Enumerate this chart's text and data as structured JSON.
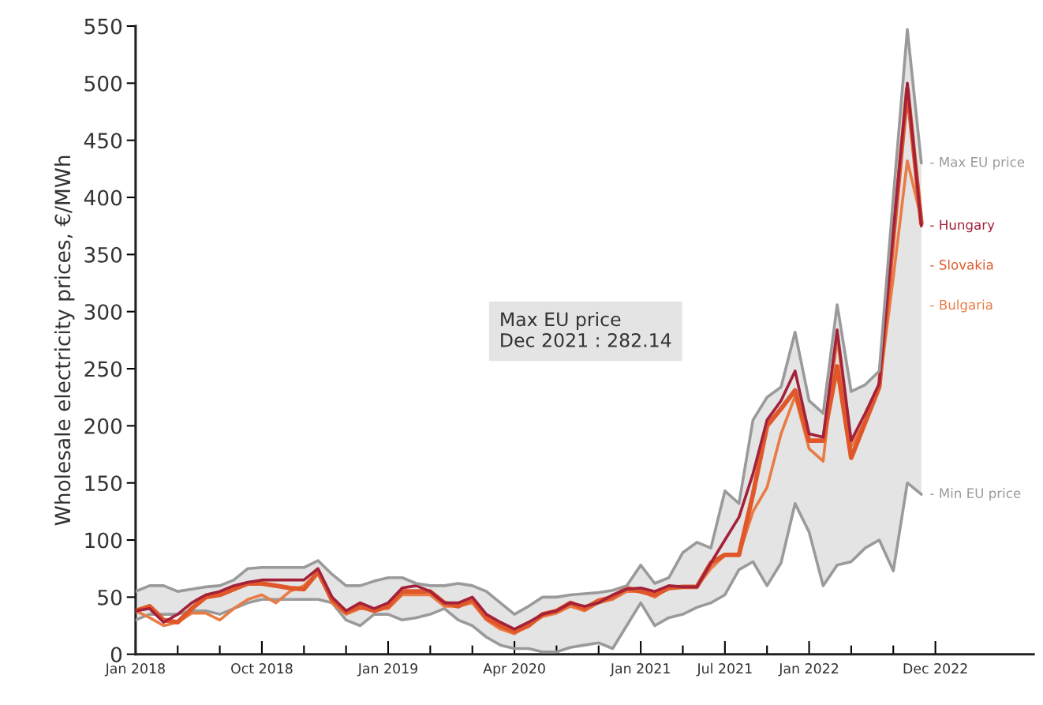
{
  "chart_data": {
    "type": "line",
    "ylabel": "Wholesale electricity prices, €/MWh",
    "categories": [
      "Jan 2018",
      null,
      null,
      null,
      null,
      null,
      null,
      null,
      null,
      "Oct 2018",
      null,
      null,
      null,
      null,
      null,
      null,
      null,
      null,
      "Jan 2019",
      null,
      null,
      null,
      null,
      null,
      null,
      null,
      null,
      "Apr 2020",
      null,
      null,
      null,
      null,
      null,
      null,
      null,
      null,
      "Jan 2021",
      null,
      null,
      null,
      null,
      null,
      "Jul 2021",
      null,
      null,
      null,
      null,
      null,
      "Jan 2022",
      null,
      null,
      null,
      null,
      null,
      null,
      null,
      null,
      "Dec 2022"
    ],
    "ylim": [
      0,
      550
    ],
    "yticks": [
      0,
      50,
      100,
      150,
      200,
      250,
      300,
      350,
      400,
      450,
      500,
      550
    ],
    "grid": false,
    "legend": false,
    "marker": "none",
    "line_style": "solid",
    "series": [
      {
        "name": "- Max EU price",
        "color": "#9a9a9a",
        "values": [
          55,
          60,
          60,
          55,
          57,
          59,
          60,
          65,
          75,
          76,
          76,
          76,
          76,
          82,
          70,
          60,
          60,
          64,
          67,
          67,
          62,
          60,
          60,
          62,
          60,
          55,
          45,
          35,
          42,
          50,
          50,
          52,
          53,
          54,
          56,
          60,
          78,
          62,
          67,
          89,
          98,
          93,
          143,
          132,
          205,
          225,
          234,
          282,
          222,
          211,
          306,
          230,
          236,
          248,
          400,
          547,
          430,
          null
        ],
        "lower": [
          30,
          35,
          35,
          35,
          38,
          38,
          35,
          40,
          45,
          48,
          48,
          48,
          48,
          48,
          45,
          30,
          25,
          35,
          35,
          30,
          32,
          35,
          40,
          30,
          25,
          15,
          8,
          5,
          5,
          2,
          2,
          6,
          8,
          10,
          5,
          25,
          45,
          25,
          32,
          35,
          41,
          45,
          52,
          74,
          81,
          60,
          80,
          132,
          107,
          60,
          78,
          81,
          93,
          100,
          73,
          150,
          140,
          null
        ],
        "upper": [
          55,
          60,
          60,
          55,
          57,
          59,
          60,
          65,
          75,
          76,
          76,
          76,
          76,
          82,
          70,
          60,
          60,
          64,
          67,
          67,
          62,
          60,
          60,
          62,
          60,
          55,
          45,
          35,
          42,
          50,
          50,
          52,
          53,
          54,
          56,
          60,
          78,
          62,
          67,
          89,
          98,
          93,
          143,
          132,
          205,
          225,
          234,
          282,
          222,
          211,
          306,
          230,
          236,
          248,
          400,
          547,
          430,
          null
        ]
      },
      {
        "name": "- Hungary",
        "color": "#a3213a",
        "values": [
          38,
          40,
          28,
          35,
          45,
          52,
          55,
          60,
          63,
          65,
          65,
          65,
          65,
          75,
          50,
          38,
          45,
          40,
          45,
          58,
          60,
          55,
          45,
          45,
          50,
          35,
          28,
          22,
          28,
          35,
          38,
          45,
          42,
          45,
          52,
          57,
          58,
          55,
          60,
          59,
          59,
          80,
          100,
          120,
          158,
          205,
          222,
          248,
          193,
          190,
          284,
          187,
          211,
          237,
          370,
          500,
          375,
          null
        ]
      },
      {
        "name": "- Slovakia",
        "color": "#e0582a",
        "values": [
          38,
          42,
          30,
          28,
          40,
          50,
          52,
          57,
          62,
          62,
          60,
          58,
          57,
          72,
          48,
          37,
          42,
          38,
          42,
          55,
          55,
          55,
          45,
          42,
          48,
          32,
          25,
          20,
          25,
          35,
          38,
          45,
          40,
          47,
          50,
          58,
          55,
          52,
          58,
          59,
          59,
          80,
          87,
          87,
          140,
          200,
          215,
          231,
          187,
          187,
          252,
          172,
          203,
          234,
          365,
          495,
          377,
          null
        ]
      },
      {
        "name": "- Bulgaria",
        "color": "#e97b45",
        "values": [
          38,
          32,
          25,
          28,
          36,
          36,
          30,
          40,
          48,
          52,
          45,
          55,
          60,
          72,
          45,
          35,
          40,
          40,
          40,
          52,
          52,
          52,
          42,
          42,
          45,
          30,
          22,
          18,
          25,
          33,
          36,
          42,
          38,
          45,
          48,
          55,
          55,
          50,
          58,
          59,
          59,
          75,
          87,
          87,
          125,
          146,
          193,
          226,
          180,
          169,
          277,
          182,
          205,
          234,
          330,
          432,
          381,
          null
        ]
      },
      {
        "name": "- Min EU price",
        "color": "#9a9a9a",
        "values": [
          30,
          35,
          35,
          35,
          38,
          38,
          35,
          40,
          45,
          48,
          48,
          48,
          48,
          48,
          45,
          30,
          25,
          35,
          35,
          30,
          32,
          35,
          40,
          30,
          25,
          15,
          8,
          5,
          5,
          2,
          2,
          6,
          8,
          10,
          5,
          25,
          45,
          25,
          32,
          35,
          41,
          45,
          52,
          74,
          81,
          60,
          80,
          132,
          107,
          60,
          78,
          81,
          93,
          100,
          73,
          150,
          140,
          null
        ]
      }
    ],
    "annotations": [
      "Max EU price\nDec 2021 : 282.14"
    ]
  }
}
